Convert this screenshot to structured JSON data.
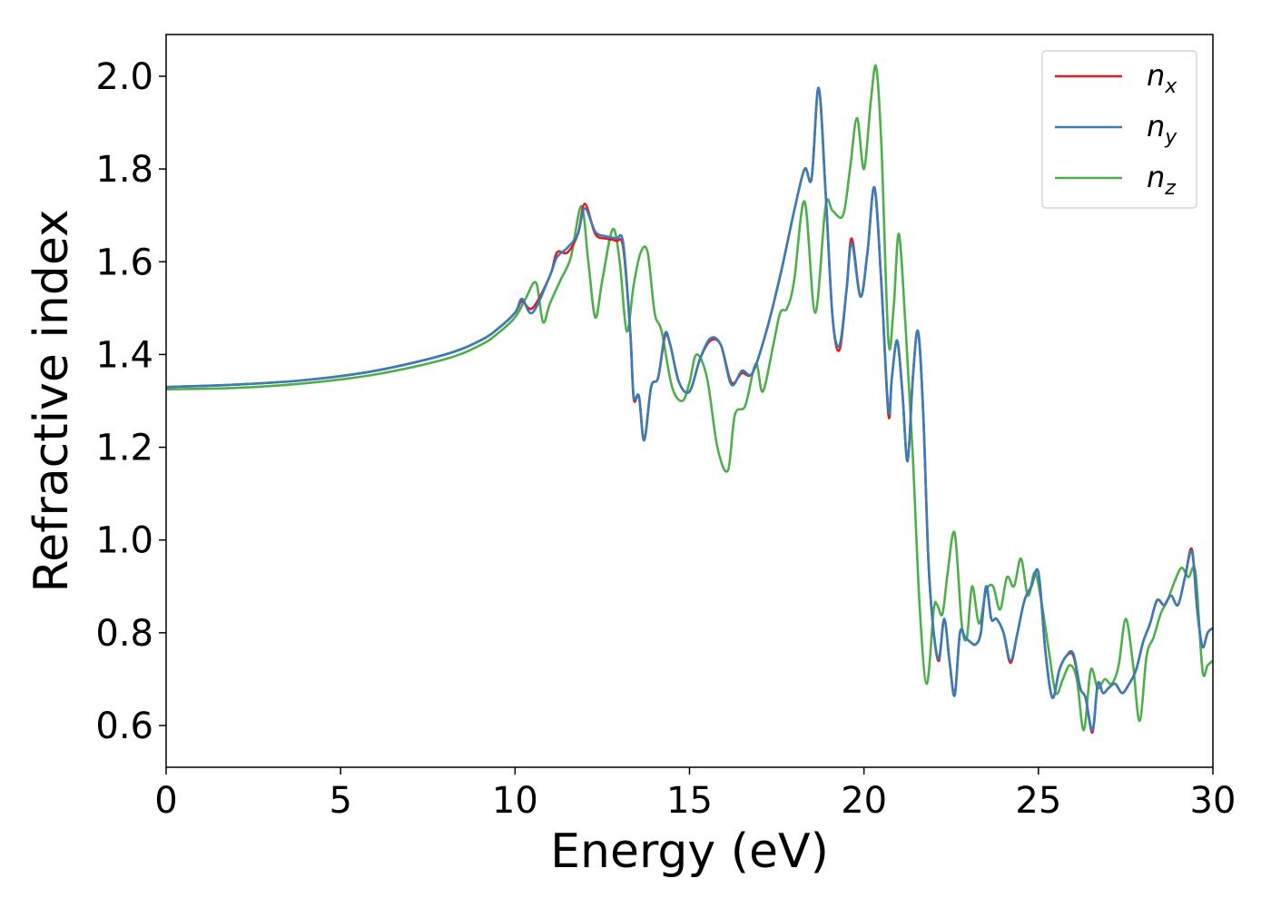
{
  "chart_data": {
    "type": "line",
    "xlabel": "Energy (eV)",
    "ylabel": "Refractive index",
    "xlim": [
      0,
      30
    ],
    "ylim": [
      0.51,
      2.09
    ],
    "xticks": [
      0,
      5,
      10,
      15,
      20,
      25,
      30
    ],
    "xtick_labels": [
      "0",
      "5",
      "10",
      "15",
      "20",
      "25",
      "30"
    ],
    "yticks": [
      0.6,
      0.8,
      1.0,
      1.2,
      1.4,
      1.6,
      1.8,
      2.0
    ],
    "ytick_labels": [
      "0.6",
      "0.8",
      "1.0",
      "1.2",
      "1.4",
      "1.6",
      "1.8",
      "2.0"
    ],
    "grid": false,
    "legend_position": "top-right",
    "series": [
      {
        "name": "n_x",
        "label_main": "n",
        "label_sub": "x",
        "color": "#e41a1c",
        "x": [
          0,
          2,
          4,
          6,
          8,
          9,
          9.5,
          10,
          10.2,
          10.5,
          11,
          11.2,
          11.5,
          11.8,
          12,
          12.3,
          12.6,
          12.9,
          13.1,
          13.3,
          13.4,
          13.55,
          13.7,
          13.9,
          14.1,
          14.3,
          14.45,
          14.7,
          15,
          15.3,
          15.6,
          15.9,
          16.2,
          16.5,
          16.8,
          17.2,
          17.6,
          18,
          18.3,
          18.5,
          18.7,
          18.9,
          19.1,
          19.3,
          19.5,
          19.65,
          19.9,
          20.1,
          20.3,
          20.5,
          20.7,
          20.8,
          20.95,
          21.1,
          21.25,
          21.4,
          21.55,
          21.7,
          21.85,
          22,
          22.15,
          22.3,
          22.45,
          22.6,
          22.75,
          22.9,
          23.05,
          23.2,
          23.35,
          23.5,
          23.65,
          23.8,
          24,
          24.2,
          24.4,
          24.6,
          24.8,
          25,
          25.2,
          25.4,
          25.6,
          25.8,
          26,
          26.2,
          26.35,
          26.55,
          26.7,
          26.85,
          27,
          27.2,
          27.4,
          27.6,
          27.8,
          28,
          28.2,
          28.4,
          28.6,
          28.8,
          29,
          29.2,
          29.4,
          29.55,
          29.7,
          29.85,
          30
        ],
        "y": [
          1.33,
          1.335,
          1.345,
          1.365,
          1.4,
          1.43,
          1.455,
          1.49,
          1.515,
          1.5,
          1.57,
          1.62,
          1.62,
          1.66,
          1.725,
          1.66,
          1.65,
          1.645,
          1.63,
          1.45,
          1.305,
          1.31,
          1.215,
          1.33,
          1.35,
          1.44,
          1.42,
          1.34,
          1.32,
          1.39,
          1.43,
          1.42,
          1.34,
          1.36,
          1.36,
          1.45,
          1.57,
          1.71,
          1.8,
          1.78,
          1.975,
          1.75,
          1.48,
          1.41,
          1.54,
          1.65,
          1.525,
          1.62,
          1.76,
          1.55,
          1.27,
          1.35,
          1.43,
          1.32,
          1.17,
          1.35,
          1.45,
          1.27,
          0.95,
          0.8,
          0.74,
          0.83,
          0.74,
          0.665,
          0.8,
          0.79,
          0.78,
          0.775,
          0.8,
          0.9,
          0.83,
          0.83,
          0.8,
          0.735,
          0.8,
          0.87,
          0.9,
          0.93,
          0.76,
          0.66,
          0.72,
          0.75,
          0.75,
          0.68,
          0.66,
          0.585,
          0.69,
          0.67,
          0.68,
          0.69,
          0.67,
          0.69,
          0.72,
          0.78,
          0.82,
          0.87,
          0.86,
          0.88,
          0.86,
          0.92,
          0.98,
          0.85,
          0.77,
          0.8,
          0.81
        ]
      },
      {
        "name": "n_y",
        "label_main": "n",
        "label_sub": "y",
        "color": "#377eb8",
        "x": [
          0,
          2,
          4,
          6,
          8,
          9,
          9.5,
          10,
          10.2,
          10.5,
          11,
          11.2,
          11.5,
          11.8,
          12,
          12.3,
          12.6,
          12.9,
          13.1,
          13.3,
          13.4,
          13.55,
          13.7,
          13.9,
          14.1,
          14.3,
          14.45,
          14.7,
          15,
          15.3,
          15.6,
          15.9,
          16.2,
          16.5,
          16.8,
          17.2,
          17.6,
          18,
          18.3,
          18.5,
          18.7,
          18.9,
          19.1,
          19.3,
          19.5,
          19.65,
          19.9,
          20.1,
          20.3,
          20.5,
          20.7,
          20.8,
          20.95,
          21.1,
          21.25,
          21.4,
          21.55,
          21.7,
          21.85,
          22,
          22.15,
          22.3,
          22.45,
          22.6,
          22.75,
          22.9,
          23.05,
          23.2,
          23.35,
          23.5,
          23.65,
          23.8,
          24,
          24.2,
          24.4,
          24.6,
          24.8,
          25,
          25.2,
          25.4,
          25.6,
          25.8,
          26,
          26.2,
          26.35,
          26.55,
          26.7,
          26.85,
          27,
          27.2,
          27.4,
          27.6,
          27.8,
          28,
          28.2,
          28.4,
          28.6,
          28.8,
          29,
          29.2,
          29.4,
          29.55,
          29.7,
          29.85,
          30
        ],
        "y": [
          1.33,
          1.335,
          1.345,
          1.365,
          1.4,
          1.43,
          1.455,
          1.49,
          1.52,
          1.49,
          1.57,
          1.61,
          1.63,
          1.66,
          1.715,
          1.665,
          1.655,
          1.65,
          1.64,
          1.45,
          1.31,
          1.31,
          1.215,
          1.33,
          1.35,
          1.445,
          1.42,
          1.34,
          1.32,
          1.39,
          1.435,
          1.42,
          1.335,
          1.365,
          1.36,
          1.45,
          1.57,
          1.71,
          1.8,
          1.78,
          1.975,
          1.75,
          1.48,
          1.42,
          1.54,
          1.64,
          1.525,
          1.62,
          1.76,
          1.55,
          1.28,
          1.35,
          1.43,
          1.32,
          1.17,
          1.35,
          1.45,
          1.27,
          0.95,
          0.8,
          0.745,
          0.83,
          0.74,
          0.665,
          0.8,
          0.79,
          0.78,
          0.775,
          0.8,
          0.9,
          0.83,
          0.83,
          0.8,
          0.74,
          0.8,
          0.87,
          0.9,
          0.93,
          0.76,
          0.66,
          0.72,
          0.75,
          0.755,
          0.68,
          0.66,
          0.59,
          0.69,
          0.67,
          0.68,
          0.69,
          0.67,
          0.69,
          0.72,
          0.78,
          0.82,
          0.87,
          0.86,
          0.88,
          0.86,
          0.92,
          0.975,
          0.85,
          0.77,
          0.8,
          0.81
        ]
      },
      {
        "name": "n_z",
        "label_main": "n",
        "label_sub": "z",
        "color": "#4daf4a",
        "x": [
          0,
          2,
          4,
          6,
          8,
          9,
          9.5,
          10,
          10.3,
          10.6,
          10.8,
          11,
          11.3,
          11.6,
          11.9,
          12.1,
          12.3,
          12.5,
          12.8,
          13,
          13.2,
          13.4,
          13.6,
          13.8,
          14,
          14.2,
          14.5,
          14.8,
          15,
          15.2,
          15.5,
          15.8,
          16.1,
          16.3,
          16.6,
          16.9,
          17.1,
          17.4,
          17.6,
          17.8,
          18,
          18.3,
          18.6,
          18.9,
          19.1,
          19.4,
          19.6,
          19.8,
          20,
          20.2,
          20.35,
          20.5,
          20.7,
          20.85,
          21,
          21.2,
          21.4,
          21.6,
          21.8,
          22,
          22.1,
          22.25,
          22.4,
          22.6,
          22.8,
          22.95,
          23.1,
          23.3,
          23.5,
          23.7,
          23.9,
          24.1,
          24.3,
          24.5,
          24.7,
          24.9,
          25.1,
          25.3,
          25.5,
          25.7,
          25.9,
          26.1,
          26.3,
          26.5,
          26.7,
          26.9,
          27.1,
          27.3,
          27.5,
          27.7,
          27.9,
          28.1,
          28.3,
          28.5,
          28.7,
          28.9,
          29.1,
          29.3,
          29.5,
          29.7,
          29.85,
          30
        ],
        "y": [
          1.325,
          1.328,
          1.338,
          1.357,
          1.39,
          1.42,
          1.445,
          1.48,
          1.52,
          1.555,
          1.47,
          1.51,
          1.56,
          1.61,
          1.72,
          1.6,
          1.48,
          1.56,
          1.67,
          1.6,
          1.45,
          1.55,
          1.62,
          1.62,
          1.49,
          1.45,
          1.33,
          1.3,
          1.34,
          1.4,
          1.35,
          1.2,
          1.15,
          1.27,
          1.29,
          1.38,
          1.32,
          1.42,
          1.49,
          1.5,
          1.56,
          1.73,
          1.49,
          1.72,
          1.71,
          1.7,
          1.8,
          1.91,
          1.8,
          1.95,
          2.02,
          1.85,
          1.43,
          1.5,
          1.66,
          1.45,
          1.18,
          0.85,
          0.69,
          0.85,
          0.86,
          0.84,
          0.93,
          1.015,
          0.82,
          0.79,
          0.9,
          0.82,
          0.89,
          0.9,
          0.85,
          0.92,
          0.9,
          0.96,
          0.88,
          0.93,
          0.86,
          0.76,
          0.67,
          0.7,
          0.73,
          0.7,
          0.59,
          0.72,
          0.68,
          0.7,
          0.69,
          0.73,
          0.83,
          0.74,
          0.61,
          0.75,
          0.79,
          0.84,
          0.87,
          0.91,
          0.94,
          0.92,
          0.93,
          0.72,
          0.73,
          0.74
        ]
      }
    ]
  }
}
